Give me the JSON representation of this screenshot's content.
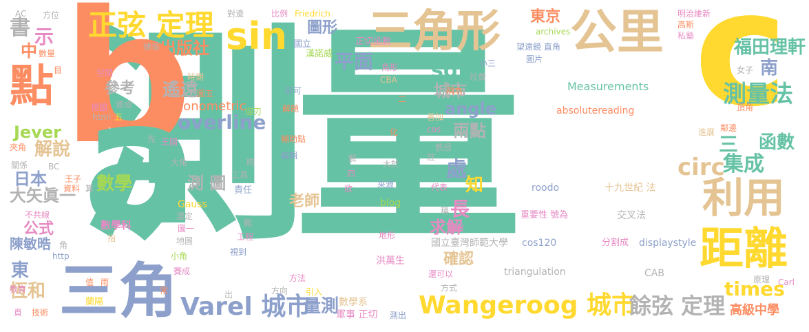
{
  "palette": {
    "green": "#66c2a5",
    "orange": "#fc8d62",
    "blue": "#8da0cb",
    "pink": "#e78ac3",
    "lime": "#a6d854",
    "yellow": "#ffd92f",
    "tan": "#e5c494",
    "gray": "#b3b3b3"
  },
  "words": [
    {
      "text": "測量",
      "color": "#66c2a5"
    },
    {
      "text": "b",
      "color": "#fc8d62"
    },
    {
      "text": "a",
      "color": "#66c2a5"
    },
    {
      "text": "c",
      "color": "#ffd92f"
    },
    {
      "text": "三角形",
      "color": "#e5c494"
    },
    {
      "text": "公里",
      "color": "#e5c494"
    },
    {
      "text": "sin",
      "color": "#ffd92f"
    },
    {
      "text": "點",
      "color": "#fc8d62"
    },
    {
      "text": "三角",
      "color": "#8da0cb"
    },
    {
      "text": "距離",
      "color": "#ffd92f"
    },
    {
      "text": "利用",
      "color": "#e5c494"
    },
    {
      "text": "正弦 定理",
      "color": "#ffd92f"
    },
    {
      "text": "Wangeroog 城市",
      "color": "#ffd92f"
    },
    {
      "text": "Varel 城市",
      "color": "#8da0cb"
    },
    {
      "text": "餘弦 定理",
      "color": "#b3b3b3"
    },
    {
      "text": "測量法",
      "color": "#66c2a5"
    },
    {
      "text": "overline",
      "color": "#8da0cb"
    },
    {
      "text": "circ",
      "color": "#e5c494"
    },
    {
      "text": "集成",
      "color": "#66c2a5"
    },
    {
      "text": "times",
      "color": "#ffd92f"
    },
    {
      "text": "書",
      "color": "#b3b3b3"
    },
    {
      "text": "示",
      "color": "#e78ac3"
    },
    {
      "text": "中",
      "color": "#fc8d62"
    },
    {
      "text": "出版社",
      "color": "#fc8d62"
    },
    {
      "text": "圖形",
      "color": "#8da0cb"
    },
    {
      "text": "平面",
      "color": "#8da0cb"
    },
    {
      "text": "sqrt",
      "color": "#66c2a5"
    },
    {
      "text": "城市",
      "color": "#b3b3b3"
    },
    {
      "text": "angle",
      "color": "#8da0cb"
    },
    {
      "text": "兩點",
      "color": "#b3b3b3"
    },
    {
      "text": "遙遠",
      "color": "#b3b3b3"
    },
    {
      "text": "參考",
      "color": "#b3b3b3"
    },
    {
      "text": "東京",
      "color": "#fc8d62"
    },
    {
      "text": "福田理軒",
      "color": "#66c2a5"
    },
    {
      "text": "南",
      "color": "#8da0cb"
    },
    {
      "text": "函數",
      "color": "#66c2a5"
    },
    {
      "text": "三",
      "color": "#66c2a5"
    },
    {
      "text": "處",
      "color": "#8da0cb"
    },
    {
      "text": "ab",
      "color": "#66c2a5"
    },
    {
      "text": "知",
      "color": "#ffd92f"
    },
    {
      "text": "長",
      "color": "#e78ac3"
    },
    {
      "text": "求解",
      "color": "#e78ac3"
    },
    {
      "text": "確認",
      "color": "#e5c494"
    },
    {
      "text": "數學",
      "color": "#a6d854"
    },
    {
      "text": "測 圖",
      "color": "#b3b3b3"
    },
    {
      "text": "解說",
      "color": "#e5c494"
    },
    {
      "text": "日本",
      "color": "#8da0cb"
    },
    {
      "text": "大矢眞一",
      "color": "#b3b3b3"
    },
    {
      "text": "公式",
      "color": "#e78ac3"
    },
    {
      "text": "陳敏晧",
      "color": "#8da0cb"
    },
    {
      "text": "東",
      "color": "#8da0cb"
    },
    {
      "text": "恆和",
      "color": "#e5c494"
    },
    {
      "text": "Jever",
      "color": "#a6d854"
    },
    {
      "text": "量測",
      "color": "#8da0cb"
    },
    {
      "text": "老師",
      "color": "#e5c494"
    },
    {
      "text": "Trigonometric",
      "color": "#fc8d62"
    },
    {
      "text": "Measurements",
      "color": "#66c2a5"
    },
    {
      "text": "absolutereading",
      "color": "#fc8d62"
    },
    {
      "text": "高級中學",
      "color": "#fc8d62"
    },
    {
      "text": "國立臺灣師範大學",
      "color": "#b3b3b3"
    },
    {
      "text": "cos120",
      "color": "#8da0cb"
    },
    {
      "text": "triangulation",
      "color": "#b3b3b3"
    },
    {
      "text": "CAB",
      "color": "#b3b3b3"
    },
    {
      "text": "十九世紀 法",
      "color": "#e5c494"
    },
    {
      "text": "交叉法",
      "color": "#b3b3b3"
    },
    {
      "text": "roodo",
      "color": "#8da0cb"
    },
    {
      "text": "重要性 號為",
      "color": "#e78ac3"
    },
    {
      "text": "displaystyle",
      "color": "#8da0cb"
    },
    {
      "text": "分割成",
      "color": "#e78ac3"
    },
    {
      "text": "數學系",
      "color": "#e5c494"
    },
    {
      "text": "軍事 正切",
      "color": "#e78ac3"
    },
    {
      "text": "洪萬生",
      "color": "#e78ac3"
    },
    {
      "text": "數學科",
      "color": "#e78ac3"
    },
    {
      "text": "Gauss",
      "color": "#ffd92f"
    },
    {
      "text": "blog",
      "color": "#a6d854"
    },
    {
      "text": "archives",
      "color": "#a6d854"
    },
    {
      "text": "明治維新",
      "color": "#e78ac3"
    },
    {
      "text": "高斯",
      "color": "#fc8d62"
    },
    {
      "text": "私塾",
      "color": "#e78ac3"
    },
    {
      "text": "望遠鏡 直角",
      "color": "#8da0cb"
    },
    {
      "text": "圖片",
      "color": "#8da0cb"
    },
    {
      "text": "正切函數",
      "color": "#e78ac3"
    },
    {
      "text": "漢諾威",
      "color": "#a6d854"
    },
    {
      "text": "國立",
      "color": "#8da0cb"
    },
    {
      "text": "Friedrich",
      "color": "#ffd92f"
    },
    {
      "text": "比例",
      "color": "#e78ac3"
    },
    {
      "text": "對邊",
      "color": "#b3b3b3"
    },
    {
      "text": "方位",
      "color": "#b3b3b3"
    },
    {
      "text": "AC",
      "color": "#b3b3b3"
    },
    {
      "text": "數量",
      "color": "#fc8d62"
    },
    {
      "text": "據值",
      "color": "#b3b3b3"
    },
    {
      "text": "時期",
      "color": "#e5c494"
    },
    {
      "text": "空間",
      "color": "#e78ac3"
    },
    {
      "text": "德國",
      "color": "#e78ac3"
    },
    {
      "text": "連成",
      "color": "#b3b3b3"
    },
    {
      "text": "html",
      "color": "#b3b3b3"
    },
    {
      "text": "五",
      "color": "#ffd92f"
    },
    {
      "text": "分為",
      "color": "#fc8d62"
    },
    {
      "text": "圖五",
      "color": "#fc8d62"
    },
    {
      "text": "王國",
      "color": "#e78ac3"
    },
    {
      "text": "先",
      "color": "#b3b3b3"
    },
    {
      "text": "夾角",
      "color": "#fc8d62"
    },
    {
      "text": "關係",
      "color": "#b3b3b3"
    },
    {
      "text": "BC",
      "color": "#b3b3b3"
    },
    {
      "text": "王子",
      "color": "#fc8d62"
    },
    {
      "text": "資料",
      "color": "#fc8d62"
    },
    {
      "text": "大角",
      "color": "#b3b3b3"
    },
    {
      "text": "工具",
      "color": "#b3b3b3"
    },
    {
      "text": "責任",
      "color": "#8da0cb"
    },
    {
      "text": "不共線",
      "color": "#e78ac3"
    },
    {
      "text": "選定",
      "color": "#b3b3b3"
    },
    {
      "text": "圖一",
      "color": "#e78ac3"
    },
    {
      "text": "地圖",
      "color": "#b3b3b3"
    },
    {
      "text": "工程",
      "color": "#e78ac3"
    },
    {
      "text": "視到",
      "color": "#8da0cb"
    },
    {
      "text": "小角",
      "color": "#a6d854"
    },
    {
      "text": "賽成",
      "color": "#e78ac3"
    },
    {
      "text": "http",
      "color": "#8da0cb"
    },
    {
      "text": "教育",
      "color": "#e78ac3"
    },
    {
      "text": "技術",
      "color": "#fc8d62"
    },
    {
      "text": "蘭陽",
      "color": "#ffd92f"
    },
    {
      "text": "方法",
      "color": "#e78ac3"
    },
    {
      "text": "引入",
      "color": "#ffd92f"
    },
    {
      "text": "方向",
      "color": "#b3b3b3"
    },
    {
      "text": "來源",
      "color": "#8da0cb"
    },
    {
      "text": "地形",
      "color": "#e78ac3"
    },
    {
      "text": "觀察",
      "color": "#e78ac3"
    },
    {
      "text": "代表",
      "color": "#e78ac3"
    },
    {
      "text": "教授",
      "color": "#b3b3b3"
    },
    {
      "text": "善加",
      "color": "#e5c494"
    },
    {
      "text": "cos",
      "color": "#e78ac3"
    },
    {
      "text": "角形",
      "color": "#e78ac3"
    },
    {
      "text": "珍貴",
      "color": "#b3b3b3"
    },
    {
      "text": "稱為",
      "color": "#fc8d62"
    },
    {
      "text": "CBA",
      "color": "#e5c494"
    },
    {
      "text": "小三",
      "color": "#8da0cb"
    },
    {
      "text": "進展",
      "color": "#e5c494"
    },
    {
      "text": "鄰邊",
      "color": "#fc8d62"
    },
    {
      "text": "頂角",
      "color": "#fc8d62"
    },
    {
      "text": "女子",
      "color": "#b3b3b3"
    },
    {
      "text": "原理",
      "color": "#b3b3b3"
    },
    {
      "text": "Carl",
      "color": "#e78ac3"
    },
    {
      "text": "方式",
      "color": "#b3b3b3"
    },
    {
      "text": "還可以",
      "color": "#e78ac3"
    },
    {
      "text": "測出",
      "color": "#8da0cb"
    },
    {
      "text": "即可",
      "color": "#8da0cb"
    },
    {
      "text": "解題",
      "color": "#fc8d62"
    },
    {
      "text": "輔助點",
      "color": "#fc8d62"
    },
    {
      "text": "編輯",
      "color": "#8da0cb"
    },
    {
      "text": "迎刃",
      "color": "#a6d854"
    },
    {
      "text": "目",
      "color": "#fc8d62"
    },
    {
      "text": "大於",
      "color": "#b3b3b3"
    },
    {
      "text": "欲",
      "color": "#e78ac3"
    },
    {
      "text": "註",
      "color": "#b3b3b3"
    },
    {
      "text": "化",
      "color": "#fc8d62"
    },
    {
      "text": "稱",
      "color": "#b3b3b3"
    },
    {
      "text": "算",
      "color": "#b3b3b3"
    },
    {
      "text": "指",
      "color": "#e5c494"
    },
    {
      "text": "角",
      "color": "#b3b3b3"
    },
    {
      "text": "值",
      "color": "#fc8d62"
    },
    {
      "text": "雨",
      "color": "#fc8d62"
    },
    {
      "text": "頁",
      "color": "#e78ac3"
    },
    {
      "text": "常",
      "color": "#fc8d62"
    },
    {
      "text": "出",
      "color": "#b3b3b3"
    },
    {
      "text": "難",
      "color": "#b3b3b3"
    },
    {
      "text": "時",
      "color": "#b3b3b3"
    },
    {
      "text": "解",
      "color": "#b3b3b3"
    },
    {
      "text": "四",
      "color": "#e78ac3"
    },
    {
      "text": "二",
      "color": "#fc8d62"
    }
  ]
}
